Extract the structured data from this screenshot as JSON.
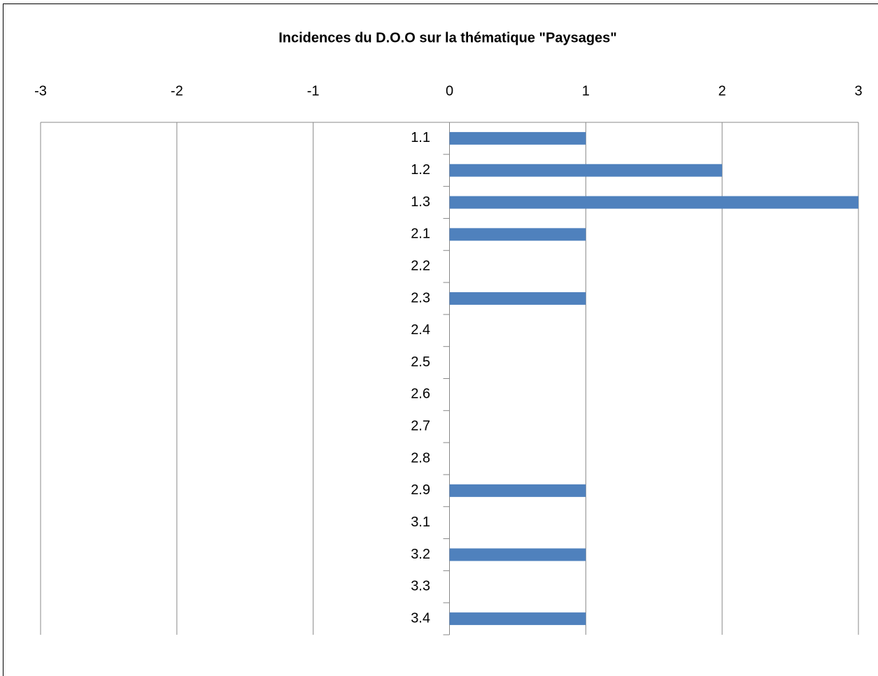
{
  "chart_data": {
    "type": "bar",
    "orientation": "horizontal",
    "title": "Incidences du D.O.O sur la thématique \"Paysages\"",
    "categories": [
      "1.1",
      "1.2",
      "1.3",
      "2.1",
      "2.2",
      "2.3",
      "2.4",
      "2.5",
      "2.6",
      "2.7",
      "2.8",
      "2.9",
      "3.1",
      "3.2",
      "3.3",
      "3.4"
    ],
    "values": [
      1,
      2,
      3,
      1,
      0,
      1,
      0,
      0,
      0,
      0,
      0,
      1,
      0,
      1,
      0,
      1
    ],
    "color": "#4f81bd",
    "xlim": [
      -3,
      3
    ],
    "xticks": [
      -3,
      -2,
      -1,
      0,
      1,
      2,
      3
    ],
    "grid": true
  }
}
